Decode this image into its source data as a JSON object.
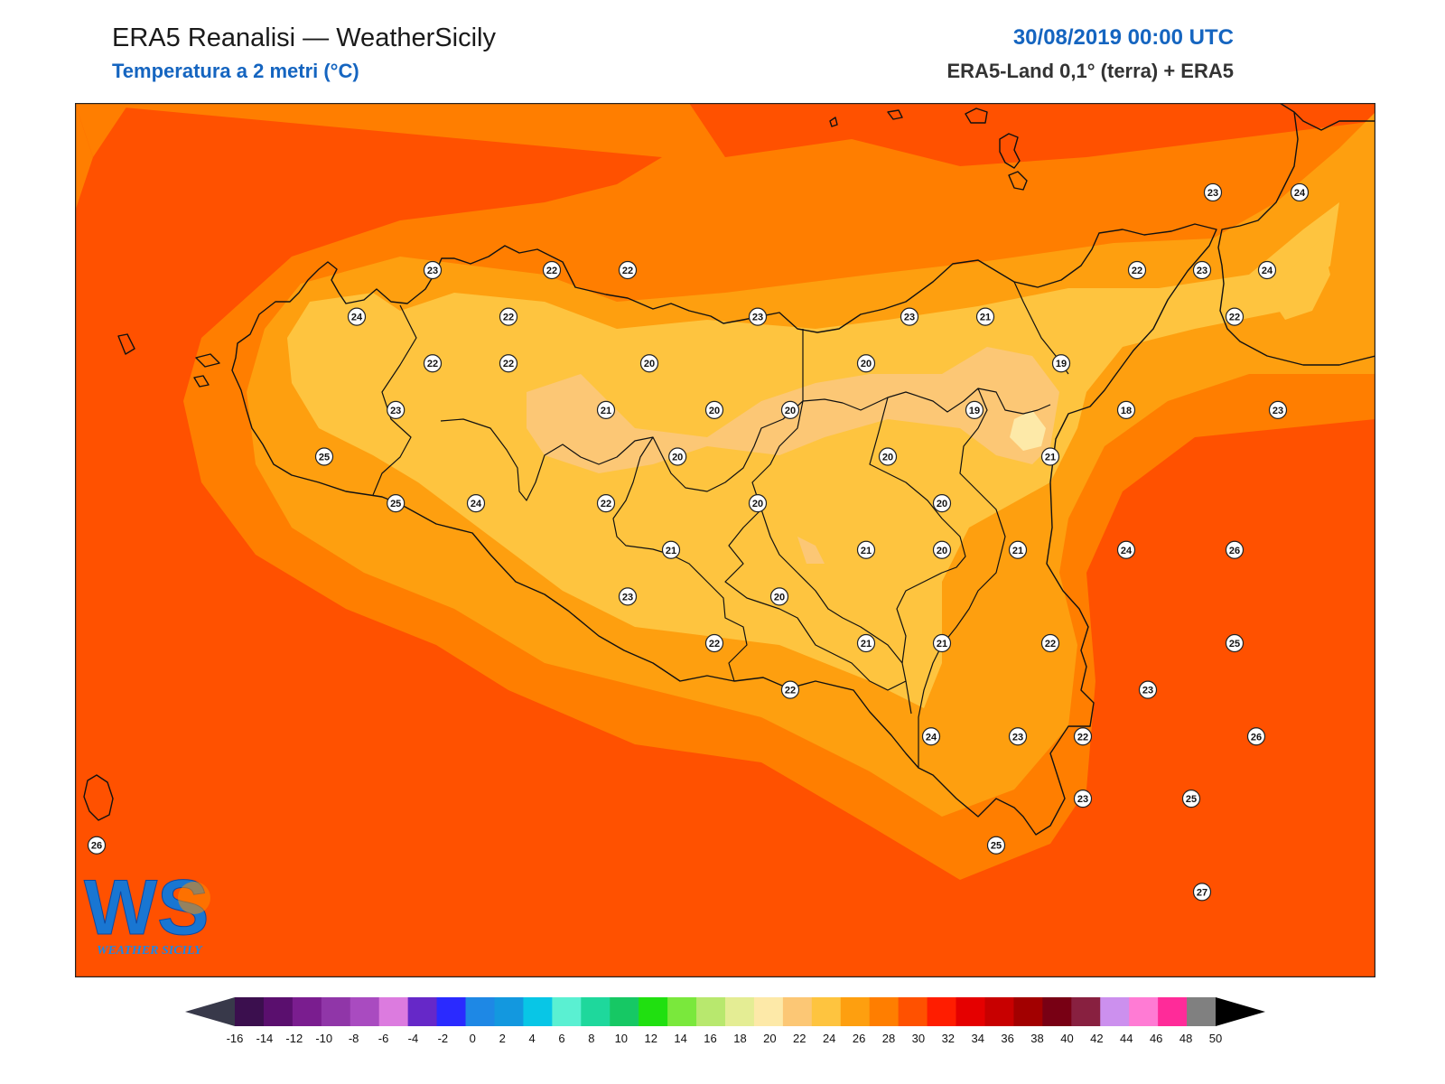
{
  "header": {
    "title": "ERA5 Reanalisi — WeatherSicily",
    "subtitle": "Temperatura a 2 metri (°C)",
    "datetime": "30/08/2019 00:00 UTC",
    "source": "ERA5-Land 0,1° (terra) + ERA5"
  },
  "logo": {
    "letters": "WS",
    "text": "WEATHER SICILY"
  },
  "colors": {
    "t18": "#fde9a8",
    "t20": "#fcc775",
    "t22": "#fec43f",
    "t24": "#fe9f0f",
    "t26": "#ff7e00",
    "t28": "#ff5100",
    "coast": "#111111"
  },
  "stations": [
    {
      "v": "23",
      "lon": 12.5,
      "lat": 38.12
    },
    {
      "v": "22",
      "lon": 13.05,
      "lat": 38.12
    },
    {
      "v": "22",
      "lon": 13.4,
      "lat": 38.12
    },
    {
      "v": "24",
      "lon": 12.15,
      "lat": 38.0
    },
    {
      "v": "22",
      "lon": 12.85,
      "lat": 38.0
    },
    {
      "v": "23",
      "lon": 14.0,
      "lat": 38.0
    },
    {
      "v": "23",
      "lon": 14.7,
      "lat": 38.0
    },
    {
      "v": "21",
      "lon": 15.05,
      "lat": 38.0
    },
    {
      "v": "22",
      "lon": 12.5,
      "lat": 37.88
    },
    {
      "v": "22",
      "lon": 12.85,
      "lat": 37.88
    },
    {
      "v": "20",
      "lon": 13.5,
      "lat": 37.88
    },
    {
      "v": "20",
      "lon": 14.5,
      "lat": 37.88
    },
    {
      "v": "19",
      "lon": 15.4,
      "lat": 37.88
    },
    {
      "v": "23",
      "lon": 12.33,
      "lat": 37.76
    },
    {
      "v": "21",
      "lon": 13.3,
      "lat": 37.76
    },
    {
      "v": "20",
      "lon": 13.8,
      "lat": 37.76
    },
    {
      "v": "20",
      "lon": 14.15,
      "lat": 37.76
    },
    {
      "v": "19",
      "lon": 15.0,
      "lat": 37.76
    },
    {
      "v": "18",
      "lon": 15.7,
      "lat": 37.76
    },
    {
      "v": "23",
      "lon": 16.4,
      "lat": 37.76
    },
    {
      "v": "25",
      "lon": 12.0,
      "lat": 37.64
    },
    {
      "v": "20",
      "lon": 13.63,
      "lat": 37.64
    },
    {
      "v": "20",
      "lon": 14.6,
      "lat": 37.64
    },
    {
      "v": "21",
      "lon": 15.35,
      "lat": 37.64
    },
    {
      "v": "25",
      "lon": 12.33,
      "lat": 37.52
    },
    {
      "v": "24",
      "lon": 12.7,
      "lat": 37.52
    },
    {
      "v": "22",
      "lon": 13.3,
      "lat": 37.52
    },
    {
      "v": "20",
      "lon": 14.0,
      "lat": 37.52
    },
    {
      "v": "20",
      "lon": 14.85,
      "lat": 37.52
    },
    {
      "v": "21",
      "lon": 13.6,
      "lat": 37.4
    },
    {
      "v": "21",
      "lon": 14.5,
      "lat": 37.4
    },
    {
      "v": "20",
      "lon": 14.85,
      "lat": 37.4
    },
    {
      "v": "21",
      "lon": 15.2,
      "lat": 37.4
    },
    {
      "v": "24",
      "lon": 15.7,
      "lat": 37.4
    },
    {
      "v": "26",
      "lon": 16.2,
      "lat": 37.4
    },
    {
      "v": "23",
      "lon": 13.4,
      "lat": 37.28
    },
    {
      "v": "20",
      "lon": 14.1,
      "lat": 37.28
    },
    {
      "v": "22",
      "lon": 13.8,
      "lat": 37.16
    },
    {
      "v": "21",
      "lon": 14.5,
      "lat": 37.16
    },
    {
      "v": "21",
      "lon": 14.85,
      "lat": 37.16
    },
    {
      "v": "22",
      "lon": 15.35,
      "lat": 37.16
    },
    {
      "v": "25",
      "lon": 16.2,
      "lat": 37.16
    },
    {
      "v": "22",
      "lon": 14.15,
      "lat": 37.04
    },
    {
      "v": "23",
      "lon": 15.8,
      "lat": 37.04
    },
    {
      "v": "24",
      "lon": 14.8,
      "lat": 36.92
    },
    {
      "v": "23",
      "lon": 15.2,
      "lat": 36.92
    },
    {
      "v": "22",
      "lon": 15.5,
      "lat": 36.92
    },
    {
      "v": "26",
      "lon": 16.3,
      "lat": 36.92
    },
    {
      "v": "23",
      "lon": 15.5,
      "lat": 36.76
    },
    {
      "v": "25",
      "lon": 16.0,
      "lat": 36.76
    },
    {
      "v": "26",
      "lon": 10.95,
      "lat": 36.64
    },
    {
      "v": "25",
      "lon": 15.1,
      "lat": 36.64
    },
    {
      "v": "27",
      "lon": 16.05,
      "lat": 36.52
    },
    {
      "v": "23",
      "lon": 16.1,
      "lat": 38.32
    },
    {
      "v": "24",
      "lon": 16.5,
      "lat": 38.32
    },
    {
      "v": "22",
      "lon": 15.75,
      "lat": 38.12
    },
    {
      "v": "23",
      "lon": 16.05,
      "lat": 38.12
    },
    {
      "v": "24",
      "lon": 16.35,
      "lat": 38.12
    },
    {
      "v": "22",
      "lon": 16.2,
      "lat": 38.0
    }
  ],
  "colorbar": {
    "labels": [
      "-16",
      "-14",
      "-12",
      "-10",
      "-8",
      "-6",
      "-4",
      "-2",
      "0",
      "2",
      "4",
      "6",
      "8",
      "10",
      "12",
      "14",
      "16",
      "18",
      "20",
      "22",
      "24",
      "26",
      "28",
      "30",
      "32",
      "34",
      "36",
      "38",
      "40",
      "42",
      "44",
      "46",
      "48",
      "50"
    ],
    "colors": [
      "#3b0f4e",
      "#5a0f6e",
      "#7a1d8f",
      "#9036a8",
      "#a94bc0",
      "#dc7bdf",
      "#6628c8",
      "#2a2aff",
      "#1e88e5",
      "#1398df",
      "#08c6e6",
      "#5af0d2",
      "#1ed89c",
      "#16c864",
      "#20e010",
      "#7ae83c",
      "#b8e86e",
      "#e4ed94",
      "#fde9a8",
      "#fcc775",
      "#fec43f",
      "#fe9f0f",
      "#ff7e00",
      "#ff5100",
      "#ff1d00",
      "#e50000",
      "#c80000",
      "#a20000",
      "#780014",
      "#882040",
      "#cc90ee",
      "#ff7bd4",
      "#ff2b99",
      "#808080",
      "#444444"
    ],
    "under": "#38394a",
    "over": "#000000"
  }
}
